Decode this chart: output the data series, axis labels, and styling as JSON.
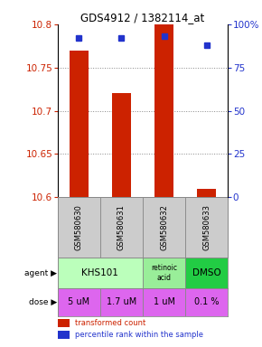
{
  "title": "GDS4912 / 1382114_at",
  "samples": [
    "GSM580630",
    "GSM580631",
    "GSM580632",
    "GSM580633"
  ],
  "bar_values": [
    10.77,
    10.72,
    10.8,
    10.61
  ],
  "bar_bottom": 10.6,
  "percentile_values": [
    92,
    92,
    93,
    88
  ],
  "percentile_max": 100,
  "ylim_left": [
    10.6,
    10.8
  ],
  "ylim_right": [
    0,
    100
  ],
  "yticks_left": [
    10.6,
    10.65,
    10.7,
    10.75,
    10.8
  ],
  "yticks_right": [
    0,
    25,
    50,
    75,
    100
  ],
  "ytick_labels_right": [
    "0",
    "25",
    "50",
    "75",
    "100%"
  ],
  "bar_color": "#cc2200",
  "dot_color": "#2233cc",
  "dose_labels": [
    "5 uM",
    "1.7 uM",
    "1 uM",
    "0.1 %"
  ],
  "dose_color": "#dd66ee",
  "grid_color": "#888888",
  "agent_khs_color": "#bbffbb",
  "agent_ret_color": "#99ee99",
  "agent_dmso_color": "#22cc44",
  "sample_bg_color": "#cccccc"
}
